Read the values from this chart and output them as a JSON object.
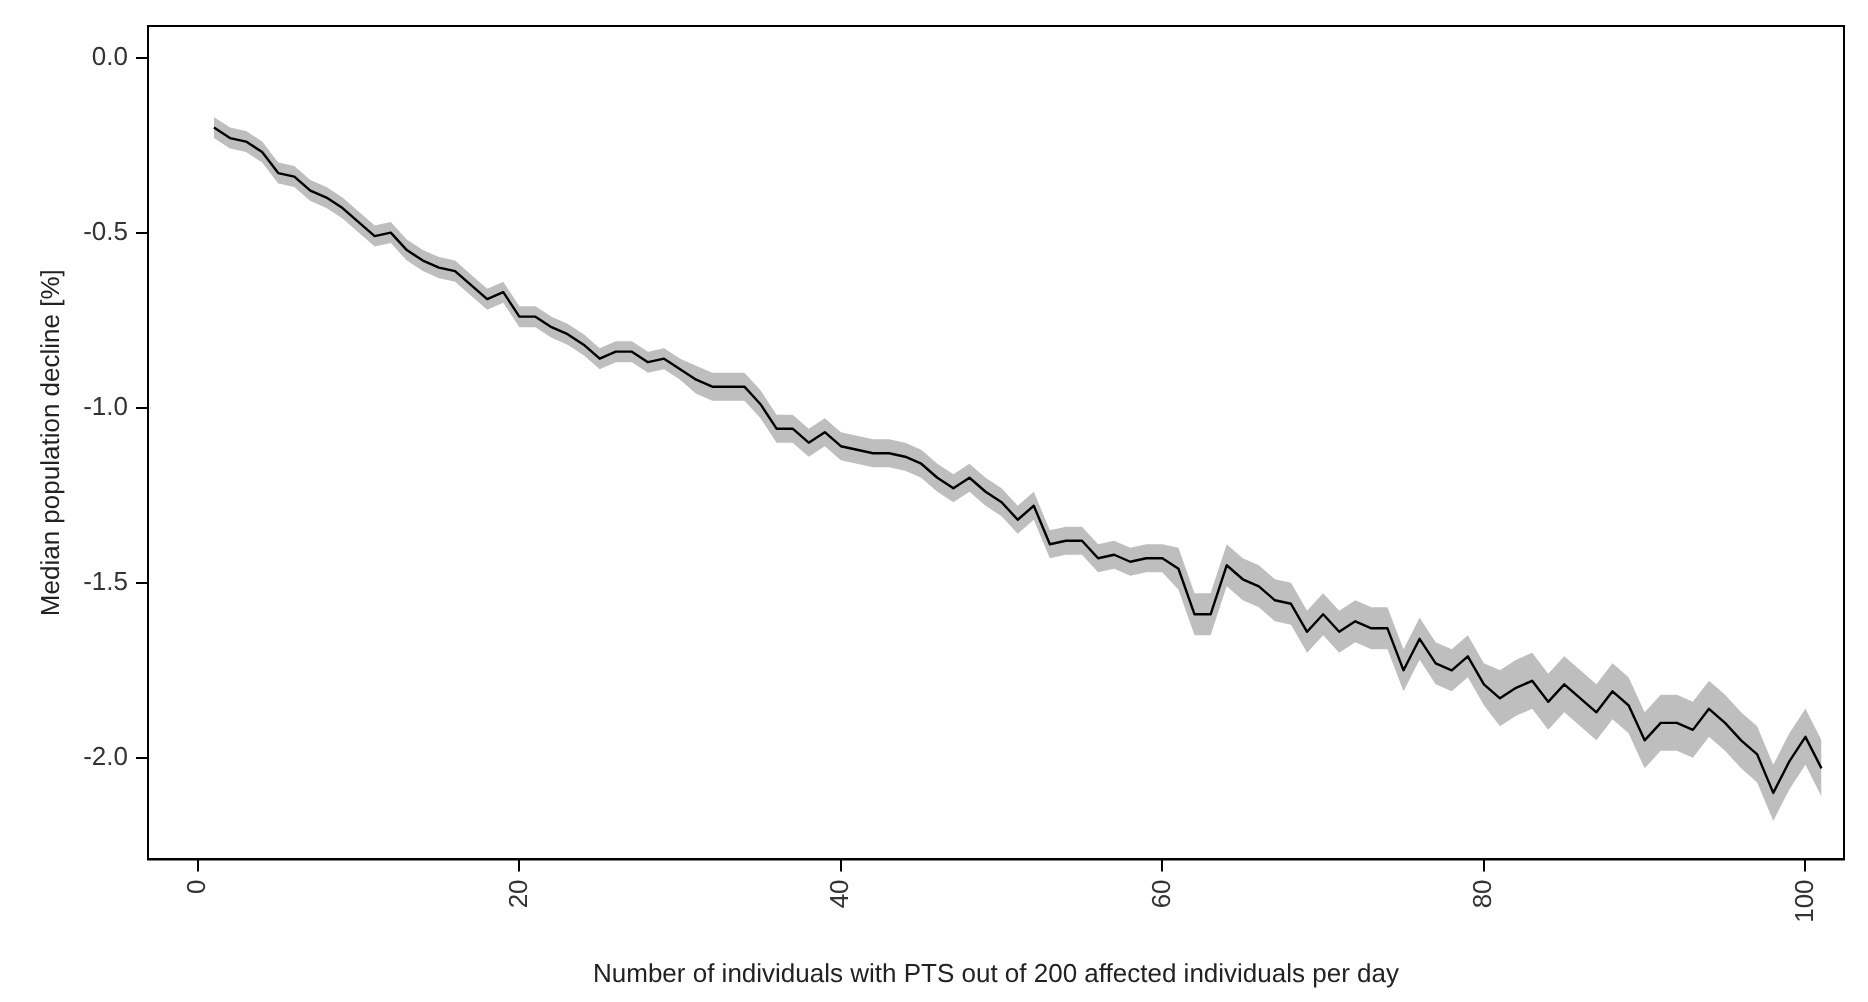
{
  "chart_data": {
    "type": "line",
    "xlabel": "Number of individuals with PTS out of 200 affected individuals per day",
    "ylabel": "Median population decline [%]",
    "x": [
      1,
      2,
      3,
      4,
      5,
      6,
      7,
      8,
      9,
      10,
      11,
      12,
      13,
      14,
      15,
      16,
      17,
      18,
      19,
      20,
      21,
      22,
      23,
      24,
      25,
      26,
      27,
      28,
      29,
      30,
      31,
      32,
      33,
      34,
      35,
      36,
      37,
      38,
      39,
      40,
      41,
      42,
      43,
      44,
      45,
      46,
      47,
      48,
      49,
      50,
      51,
      52,
      53,
      54,
      55,
      56,
      57,
      58,
      59,
      60,
      61,
      62,
      63,
      64,
      65,
      66,
      67,
      68,
      69,
      70,
      71,
      72,
      73,
      74,
      75,
      76,
      77,
      78,
      79,
      80,
      81,
      82,
      83,
      84,
      85,
      86,
      87,
      88,
      89,
      90,
      91,
      92,
      93,
      94,
      95,
      96,
      97,
      98,
      99,
      100,
      101
    ],
    "series": [
      {
        "color": "#000000",
        "values": [
          -0.2,
          -0.23,
          -0.24,
          -0.27,
          -0.33,
          -0.34,
          -0.38,
          -0.4,
          -0.43,
          -0.47,
          -0.51,
          -0.5,
          -0.55,
          -0.58,
          -0.6,
          -0.61,
          -0.65,
          -0.69,
          -0.67,
          -0.74,
          -0.74,
          -0.77,
          -0.79,
          -0.82,
          -0.86,
          -0.84,
          -0.84,
          -0.87,
          -0.86,
          -0.89,
          -0.92,
          -0.94,
          -0.94,
          -0.94,
          -0.99,
          -1.06,
          -1.06,
          -1.1,
          -1.07,
          -1.11,
          -1.12,
          -1.13,
          -1.13,
          -1.14,
          -1.16,
          -1.2,
          -1.23,
          -1.2,
          -1.24,
          -1.27,
          -1.32,
          -1.28,
          -1.39,
          -1.38,
          -1.38,
          -1.43,
          -1.42,
          -1.44,
          -1.43,
          -1.43,
          -1.46,
          -1.59,
          -1.59,
          -1.45,
          -1.49,
          -1.51,
          -1.55,
          -1.56,
          -1.64,
          -1.59,
          -1.64,
          -1.61,
          -1.63,
          -1.63,
          -1.75,
          -1.66,
          -1.73,
          -1.75,
          -1.71,
          -1.79,
          -1.83,
          -1.8,
          -1.78,
          -1.84,
          -1.79,
          -1.83,
          -1.87,
          -1.81,
          -1.85,
          -1.95,
          -1.9,
          -1.9,
          -1.92,
          -1.86,
          -1.9,
          -1.95,
          -1.99,
          -2.1,
          -2.01,
          -1.94,
          -2.03
        ],
        "upper": [
          -0.17,
          -0.2,
          -0.21,
          -0.24,
          -0.3,
          -0.31,
          -0.35,
          -0.37,
          -0.4,
          -0.44,
          -0.48,
          -0.47,
          -0.52,
          -0.55,
          -0.57,
          -0.58,
          -0.62,
          -0.66,
          -0.64,
          -0.71,
          -0.71,
          -0.74,
          -0.76,
          -0.79,
          -0.83,
          -0.81,
          -0.81,
          -0.84,
          -0.83,
          -0.86,
          -0.88,
          -0.9,
          -0.9,
          -0.9,
          -0.95,
          -1.02,
          -1.02,
          -1.06,
          -1.03,
          -1.07,
          -1.08,
          -1.09,
          -1.09,
          -1.1,
          -1.12,
          -1.16,
          -1.19,
          -1.16,
          -1.2,
          -1.23,
          -1.28,
          -1.24,
          -1.35,
          -1.34,
          -1.34,
          -1.39,
          -1.38,
          -1.4,
          -1.39,
          -1.39,
          -1.4,
          -1.53,
          -1.53,
          -1.39,
          -1.43,
          -1.45,
          -1.49,
          -1.5,
          -1.58,
          -1.53,
          -1.58,
          -1.55,
          -1.57,
          -1.57,
          -1.69,
          -1.6,
          -1.67,
          -1.69,
          -1.65,
          -1.73,
          -1.75,
          -1.72,
          -1.7,
          -1.76,
          -1.71,
          -1.75,
          -1.79,
          -1.73,
          -1.77,
          -1.87,
          -1.82,
          -1.82,
          -1.84,
          -1.78,
          -1.82,
          -1.87,
          -1.91,
          -2.02,
          -1.93,
          -1.86,
          -1.95
        ],
        "lower": [
          -0.23,
          -0.26,
          -0.27,
          -0.3,
          -0.36,
          -0.37,
          -0.41,
          -0.43,
          -0.46,
          -0.5,
          -0.54,
          -0.53,
          -0.58,
          -0.61,
          -0.63,
          -0.64,
          -0.68,
          -0.72,
          -0.7,
          -0.77,
          -0.77,
          -0.8,
          -0.82,
          -0.85,
          -0.89,
          -0.87,
          -0.87,
          -0.9,
          -0.89,
          -0.92,
          -0.96,
          -0.98,
          -0.98,
          -0.98,
          -1.03,
          -1.1,
          -1.1,
          -1.14,
          -1.11,
          -1.15,
          -1.16,
          -1.17,
          -1.17,
          -1.18,
          -1.2,
          -1.24,
          -1.27,
          -1.24,
          -1.28,
          -1.31,
          -1.36,
          -1.32,
          -1.43,
          -1.42,
          -1.42,
          -1.47,
          -1.46,
          -1.48,
          -1.47,
          -1.47,
          -1.52,
          -1.65,
          -1.65,
          -1.51,
          -1.55,
          -1.57,
          -1.61,
          -1.62,
          -1.7,
          -1.65,
          -1.7,
          -1.67,
          -1.69,
          -1.69,
          -1.81,
          -1.72,
          -1.79,
          -1.81,
          -1.77,
          -1.85,
          -1.91,
          -1.88,
          -1.86,
          -1.92,
          -1.87,
          -1.91,
          -1.95,
          -1.89,
          -1.93,
          -2.03,
          -1.98,
          -1.98,
          -2.0,
          -1.94,
          -1.98,
          -2.03,
          -2.07,
          -2.18,
          -2.09,
          -2.02,
          -2.11
        ]
      }
    ],
    "xlim": [
      -3.1,
      102.4
    ],
    "xticks": [
      0,
      20,
      40,
      60,
      80,
      100
    ],
    "ylim": [
      -2.29,
      0.09
    ],
    "yticks": [
      {
        "value": 0,
        "label": "0.0"
      },
      {
        "value": -0.5,
        "label": "-0.5"
      },
      {
        "value": -1,
        "label": "-1.0"
      },
      {
        "value": -1.5,
        "label": "-1.5"
      },
      {
        "value": -2,
        "label": "-2.0"
      }
    ],
    "grid": false,
    "legend": false,
    "marker": "none",
    "line_style": "solid"
  }
}
